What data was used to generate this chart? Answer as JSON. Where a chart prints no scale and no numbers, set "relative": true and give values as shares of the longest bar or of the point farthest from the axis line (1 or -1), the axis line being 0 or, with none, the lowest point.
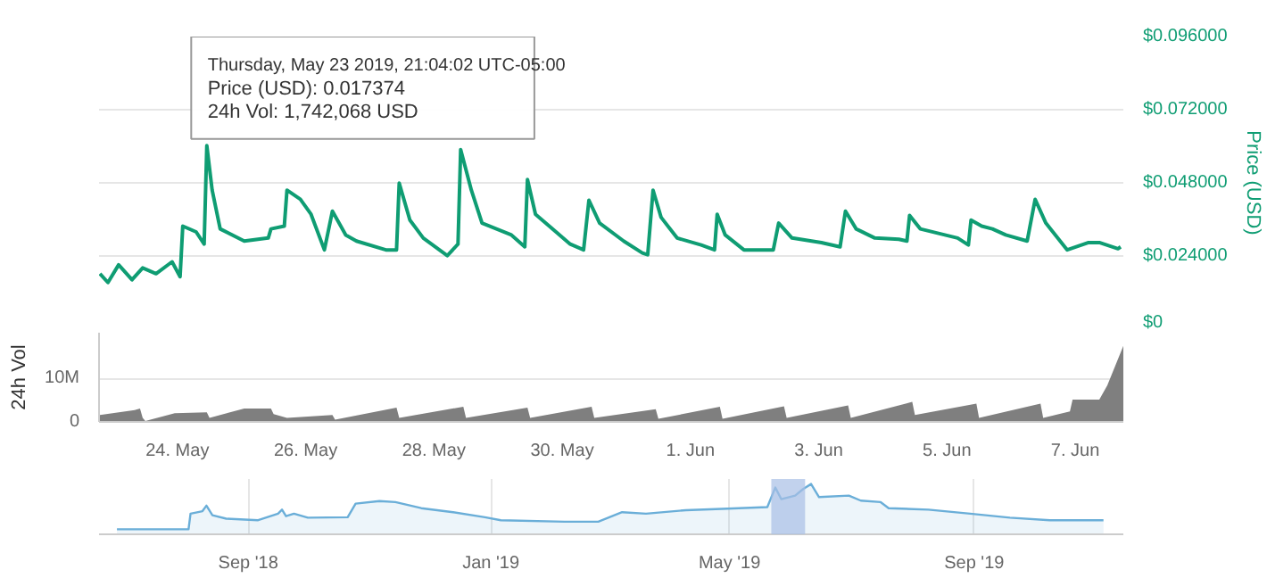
{
  "chart_data": [
    {
      "type": "line",
      "ylabel": "Price (USD)",
      "color": "#0f9d73",
      "grid": "y",
      "tick_labels": "y",
      "xlim": [
        "2019-05-22T18:40",
        "2019-06-07T18:00"
      ],
      "ylim": [
        0,
        0.096
      ],
      "yticks": [
        {
          "value": 0,
          "label": "$0"
        },
        {
          "value": 0.024,
          "label": "$0.024000"
        },
        {
          "value": 0.048,
          "label": "$0.048000"
        },
        {
          "value": 0.072,
          "label": "$0.072000"
        },
        {
          "value": 0.096,
          "label": "$0.096000"
        }
      ],
      "annotations": [
        "Thursday, May 23 2019, 21:04:02 UTC-05:00",
        "Price (USD): 0.017374",
        "24h Vol: 1,742,068 USD"
      ],
      "x": [
        "2019-05-22T19:00",
        "2019-05-22T22:00",
        "2019-05-23T02:00",
        "2019-05-23T07:00",
        "2019-05-23T11:00",
        "2019-05-23T16:00",
        "2019-05-23T22:00",
        "2019-05-24T01:00",
        "2019-05-24T02:00",
        "2019-05-24T07:00",
        "2019-05-24T10:00",
        "2019-05-24T11:00",
        "2019-05-24T13:00",
        "2019-05-24T16:00",
        "2019-05-25T01:00",
        "2019-05-25T10:00",
        "2019-05-25T11:00",
        "2019-05-25T16:00",
        "2019-05-25T17:00",
        "2019-05-25T22:00",
        "2019-05-26T02:00",
        "2019-05-26T07:00",
        "2019-05-26T10:00",
        "2019-05-26T15:00",
        "2019-05-26T19:00",
        "2019-05-27T06:00",
        "2019-05-27T10:00",
        "2019-05-27T11:00",
        "2019-05-27T15:00",
        "2019-05-27T20:00",
        "2019-05-28T05:00",
        "2019-05-28T09:00",
        "2019-05-28T10:00",
        "2019-05-28T14:00",
        "2019-05-28T18:00",
        "2019-05-29T05:00",
        "2019-05-29T10:00",
        "2019-05-29T11:00",
        "2019-05-29T14:00",
        "2019-05-30T03:00",
        "2019-05-30T08:00",
        "2019-05-30T10:00",
        "2019-05-30T14:00",
        "2019-05-30T23:00",
        "2019-05-31T06:00",
        "2019-05-31T08:00",
        "2019-05-31T10:00",
        "2019-05-31T13:00",
        "2019-05-31T19:00",
        "2019-06-01T04:00",
        "2019-06-01T09:00",
        "2019-06-01T10:00",
        "2019-06-01T13:00",
        "2019-06-01T20:00",
        "2019-06-02T07:00",
        "2019-06-02T09:00",
        "2019-06-02T14:00",
        "2019-06-03T01:00",
        "2019-06-03T08:00",
        "2019-06-03T10:00",
        "2019-06-03T14:00",
        "2019-06-03T21:00",
        "2019-06-04T06:00",
        "2019-06-04T09:00",
        "2019-06-04T10:00",
        "2019-06-04T14:00",
        "2019-06-05T04:00",
        "2019-06-05T08:00",
        "2019-06-05T09:00",
        "2019-06-05T13:00",
        "2019-06-05T17:00",
        "2019-06-05T22:00",
        "2019-06-06T06:00",
        "2019-06-06T09:00",
        "2019-06-06T13:00",
        "2019-06-06T21:00",
        "2019-06-07T05:00",
        "2019-06-07T09:00",
        "2019-06-07T16:00",
        "2019-06-07T17:00"
      ],
      "values": [
        0.0182,
        0.0153,
        0.0211,
        0.0162,
        0.0201,
        0.0182,
        0.0221,
        0.0172,
        0.0338,
        0.0319,
        0.0279,
        0.0602,
        0.0456,
        0.0329,
        0.0289,
        0.0299,
        0.0329,
        0.0338,
        0.0456,
        0.0426,
        0.0377,
        0.026,
        0.0387,
        0.0309,
        0.0289,
        0.026,
        0.026,
        0.0479,
        0.0358,
        0.0299,
        0.0241,
        0.0279,
        0.0589,
        0.0456,
        0.0348,
        0.0309,
        0.027,
        0.0491,
        0.0377,
        0.0279,
        0.026,
        0.0423,
        0.0348,
        0.0289,
        0.025,
        0.0244,
        0.0456,
        0.0367,
        0.0299,
        0.0276,
        0.026,
        0.0377,
        0.0309,
        0.026,
        0.026,
        0.0348,
        0.0299,
        0.0284,
        0.027,
        0.0387,
        0.0329,
        0.0299,
        0.0295,
        0.0289,
        0.0373,
        0.0329,
        0.0299,
        0.0276,
        0.0358,
        0.0338,
        0.0329,
        0.0309,
        0.0289,
        0.0426,
        0.0348,
        0.026,
        0.0284,
        0.0284,
        0.0264,
        0.027
      ]
    },
    {
      "type": "area",
      "ylabel": "24h Vol",
      "color": "#7f7f7f",
      "grid": "y",
      "xlim": [
        "2019-05-22T18:40",
        "2019-06-07T18:00"
      ],
      "ylim": [
        0,
        20500000
      ],
      "xticks": [
        {
          "value": "2019-05-24",
          "label": "24. May"
        },
        {
          "value": "2019-05-26",
          "label": "26. May"
        },
        {
          "value": "2019-05-28",
          "label": "28. May"
        },
        {
          "value": "2019-05-30",
          "label": "30. May"
        },
        {
          "value": "2019-06-01",
          "label": "1. Jun"
        },
        {
          "value": "2019-06-03",
          "label": "3. Jun"
        },
        {
          "value": "2019-06-05",
          "label": "5. Jun"
        },
        {
          "value": "2019-06-07",
          "label": "7. Jun"
        }
      ],
      "yticks": [
        0,
        {
          "value": 10000000,
          "label": "10M"
        }
      ],
      "x": [
        "2019-05-22T19:00",
        "2019-05-23T08:00",
        "2019-05-23T10:00",
        "2019-05-23T11:00",
        "2019-05-23T12:00",
        "2019-05-23T23:00",
        "2019-05-24T11:00",
        "2019-05-24T12:00",
        "2019-05-25T01:00",
        "2019-05-25T11:00",
        "2019-05-25T12:00",
        "2019-05-25T17:00",
        "2019-05-26T10:00",
        "2019-05-26T11:00",
        "2019-05-27T10:00",
        "2019-05-27T11:00",
        "2019-05-28T11:00",
        "2019-05-28T12:00",
        "2019-05-29T11:00",
        "2019-05-29T12:00",
        "2019-05-30T11:00",
        "2019-05-30T12:00",
        "2019-05-31T11:00",
        "2019-05-31T12:00",
        "2019-06-01T11:00",
        "2019-06-01T12:00",
        "2019-06-02T11:00",
        "2019-06-02T12:00",
        "2019-06-03T11:00",
        "2019-06-03T12:00",
        "2019-06-04T11:00",
        "2019-06-04T12:00",
        "2019-06-05T11:00",
        "2019-06-05T12:00",
        "2019-06-06T11:00",
        "2019-06-06T12:00",
        "2019-06-06T22:00",
        "2019-06-06T23:00",
        "2019-06-07T09:00",
        "2019-06-07T12:00",
        "2019-06-07T18:00"
      ],
      "values": [
        1600000,
        2700000,
        3100000,
        900000,
        200000,
        2000000,
        2200000,
        900000,
        3100000,
        3100000,
        1800000,
        900000,
        1600000,
        500000,
        3300000,
        900000,
        3500000,
        900000,
        3300000,
        900000,
        3500000,
        900000,
        2900000,
        700000,
        3500000,
        700000,
        3600000,
        900000,
        3800000,
        900000,
        4600000,
        1600000,
        4200000,
        900000,
        4200000,
        900000,
        2400000,
        5100000,
        5100000,
        8400000,
        17500000
      ]
    },
    {
      "type": "area",
      "relative": true,
      "color": "#6aaed8",
      "grid": "x",
      "tick_labels": "x",
      "xlim": [
        "2018-06-18",
        "2019-11-15"
      ],
      "xticks": [
        {
          "value": "2018-09-01",
          "label": "Sep '18"
        },
        {
          "value": "2019-01-01",
          "label": "Jan '19"
        },
        {
          "value": "2019-05-01",
          "label": "May '19"
        },
        {
          "value": "2019-09-01",
          "label": "Sep '19"
        }
      ],
      "bands": [
        {
          "axis": "x",
          "from": "2019-05-22",
          "to": "2019-06-08",
          "color": "#a8bfe6"
        }
      ],
      "x": [
        "2018-06-27",
        "2018-08-02",
        "2018-08-03",
        "2018-08-09",
        "2018-08-11",
        "2018-08-14",
        "2018-08-21",
        "2018-09-06",
        "2018-09-16",
        "2018-09-18",
        "2018-09-20",
        "2018-09-24",
        "2018-10-01",
        "2018-10-21",
        "2018-10-25",
        "2018-11-06",
        "2018-11-14",
        "2018-11-27",
        "2018-12-13",
        "2018-12-29",
        "2019-01-06",
        "2019-02-07",
        "2019-02-24",
        "2019-03-08",
        "2019-03-20",
        "2019-04-09",
        "2019-04-30",
        "2019-05-20",
        "2019-05-24",
        "2019-05-27",
        "2019-06-03",
        "2019-06-07",
        "2019-06-11",
        "2019-06-15",
        "2019-06-30",
        "2019-07-06",
        "2019-07-16",
        "2019-07-20",
        "2019-08-09",
        "2019-08-30",
        "2019-09-19",
        "2019-10-09",
        "2019-11-05"
      ],
      "values": [
        0.1,
        0.1,
        0.41,
        0.46,
        0.57,
        0.38,
        0.31,
        0.28,
        0.41,
        0.49,
        0.36,
        0.41,
        0.33,
        0.34,
        0.61,
        0.66,
        0.64,
        0.52,
        0.44,
        0.34,
        0.28,
        0.25,
        0.25,
        0.44,
        0.41,
        0.48,
        0.51,
        0.54,
        0.93,
        0.7,
        0.77,
        0.9,
        1,
        0.74,
        0.77,
        0.67,
        0.64,
        0.52,
        0.49,
        0.41,
        0.33,
        0.28,
        0.28
      ]
    }
  ]
}
